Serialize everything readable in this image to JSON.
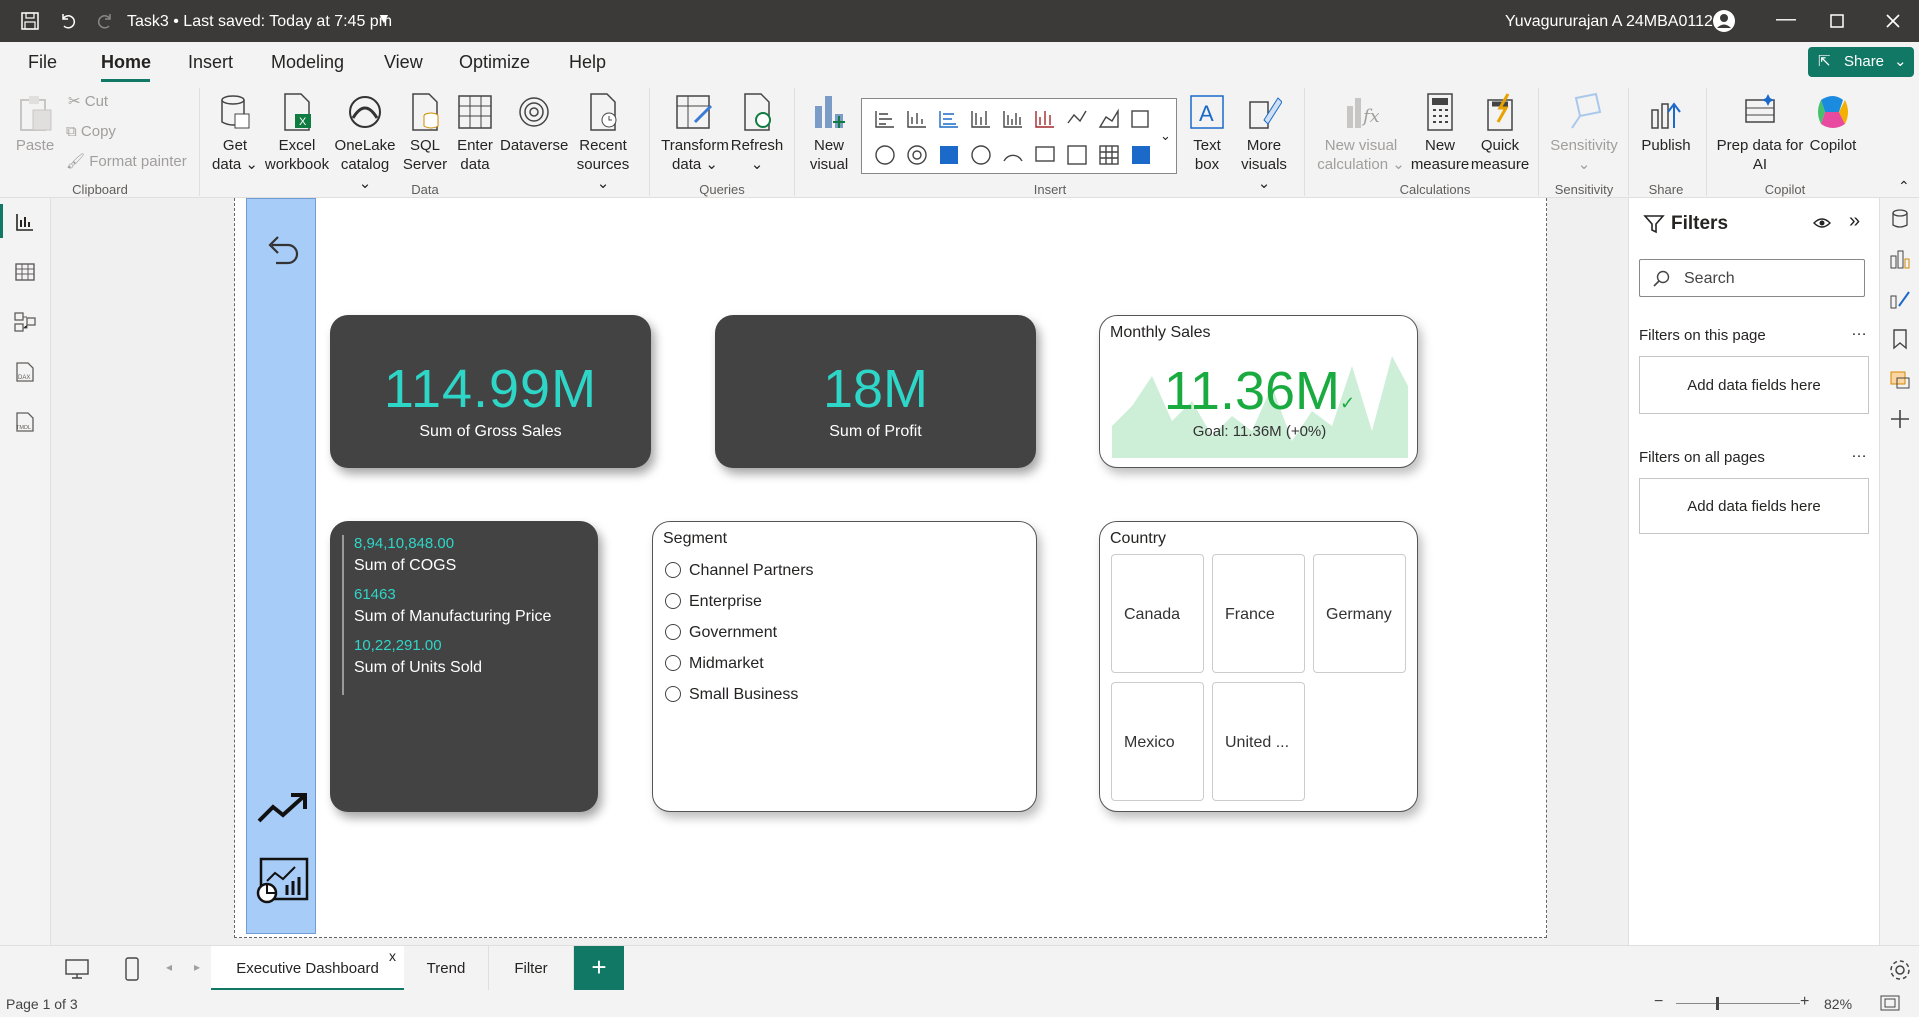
{
  "titlebar": {
    "doc_title": "Task3 • Last saved: Today at 7:45 pm",
    "user": "Yuvagururajan A 24MBA0112"
  },
  "menu": {
    "items": [
      "File",
      "Home",
      "Insert",
      "Modeling",
      "View",
      "Optimize",
      "Help"
    ],
    "active": "Home",
    "share_label": "Share"
  },
  "ribbon": {
    "clipboard": {
      "paste": "Paste",
      "cut": "Cut",
      "copy": "Copy",
      "format_painter": "Format painter",
      "group": "Clipboard"
    },
    "data": {
      "get_data": [
        "Get",
        "data ⌄"
      ],
      "excel": [
        "Excel",
        "workbook"
      ],
      "onelake": [
        "OneLake",
        "catalog ⌄"
      ],
      "sql": [
        "SQL",
        "Server"
      ],
      "enter": [
        "Enter",
        "data"
      ],
      "dataverse": [
        "Dataverse",
        ""
      ],
      "recent": [
        "Recent",
        "sources ⌄"
      ],
      "group": "Data"
    },
    "queries": {
      "transform": [
        "Transform",
        "data ⌄"
      ],
      "refresh": [
        "Refresh",
        "⌄"
      ],
      "group": "Queries"
    },
    "insert": {
      "new_visual": [
        "New",
        "visual"
      ],
      "text_box": [
        "Text",
        "box"
      ],
      "more_visuals": [
        "More",
        "visuals ⌄"
      ],
      "group": "Insert"
    },
    "calculations": {
      "new_visual_calc": [
        "New visual",
        "calculation ⌄"
      ],
      "new_measure": [
        "New",
        "measure"
      ],
      "quick_measure": [
        "Quick",
        "measure"
      ],
      "group": "Calculations"
    },
    "sensitivity": {
      "label": [
        "Sensitivity",
        "⌄"
      ],
      "group": "Sensitivity"
    },
    "share": {
      "publish": [
        "Publish",
        ""
      ],
      "group": "Share"
    },
    "copilot": {
      "prep": [
        "Prep data for",
        "AI"
      ],
      "copilot": [
        "Copilot",
        ""
      ],
      "group": "Copilot"
    }
  },
  "report": {
    "gross_sales": {
      "value": "114.99M",
      "label": "Sum of Gross Sales"
    },
    "profit": {
      "value": "18M",
      "label": "Sum of Profit"
    },
    "monthly_sales": {
      "title": "Monthly Sales",
      "value": "11.36M",
      "goal": "Goal: 11.36M (+0%)",
      "color": "#1aab40"
    },
    "multi": {
      "rows": [
        {
          "value": "8,94,10,848.00",
          "label": "Sum of COGS"
        },
        {
          "value": "61463",
          "label": "Sum of Manufacturing Price"
        },
        {
          "value": "10,22,291.00",
          "label": "Sum of Units Sold"
        }
      ],
      "value_color": "#2ed6c8"
    },
    "segment": {
      "title": "Segment",
      "options": [
        "Channel Partners",
        "Enterprise",
        "Government",
        "Midmarket",
        "Small Business"
      ]
    },
    "country": {
      "title": "Country",
      "tiles": [
        "Canada",
        "France",
        "Germany",
        "Mexico",
        "United ..."
      ]
    },
    "kpi_color": "#2ed6c8"
  },
  "filters": {
    "title": "Filters",
    "search_placeholder": "Search",
    "on_this_page": "Filters on this page",
    "on_all_pages": "Filters on all pages",
    "add_fields": "Add data fields here"
  },
  "tabs": {
    "items": [
      "Executive Dashboard",
      "Trend",
      "Filter"
    ],
    "active": "Executive Dashboard",
    "close": "x"
  },
  "status": {
    "page": "Page 1 of 3",
    "zoom": "82%"
  }
}
